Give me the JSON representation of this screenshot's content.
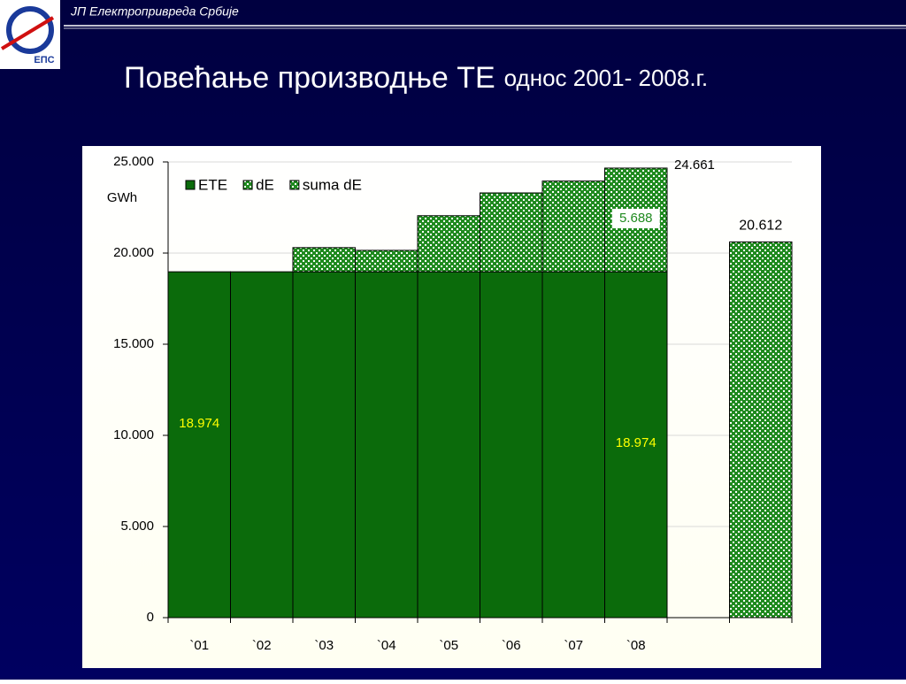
{
  "header": {
    "text": "ЈП Електропривреда Србије",
    "logo_text": "ЕПС"
  },
  "chart_data": {
    "type": "stacked-bar",
    "title": "Повећање производње ТЕ",
    "subtitle": "однос 2001-  2008.г.",
    "y_label": "GWh",
    "categories": [
      "`01",
      "`02",
      "`03",
      "`04",
      "`05",
      "`06",
      "`07",
      "`08",
      null,
      null
    ],
    "series": [
      {
        "name": "ETE",
        "color": "#0b6b0b",
        "pattern": false,
        "values": [
          18974,
          18974,
          18974,
          18974,
          18974,
          18974,
          18974,
          18974,
          null,
          null
        ],
        "value_labels": [
          "18.974",
          null,
          null,
          null,
          null,
          null,
          null,
          "18.974",
          null,
          null
        ]
      },
      {
        "name": "dE",
        "color": "#1f8a1f",
        "pattern": true,
        "values": [
          null,
          null,
          1326,
          1176,
          3076,
          4326,
          4976,
          5688,
          null,
          null
        ],
        "value_labels": [
          null,
          null,
          null,
          null,
          null,
          null,
          null,
          "5.688",
          null,
          null
        ]
      },
      {
        "name": "suma dE",
        "color": "#1f8a1f",
        "pattern": true,
        "values": [
          null,
          null,
          null,
          null,
          null,
          null,
          null,
          null,
          null,
          20612
        ],
        "value_labels": [
          null,
          null,
          null,
          null,
          null,
          null,
          null,
          null,
          null,
          "20.612"
        ]
      }
    ],
    "annotations": [
      "24.661"
    ],
    "ylim": [
      0,
      25000
    ],
    "yticks": [
      0,
      {
        "value": 5000,
        "label": "5.000"
      },
      {
        "value": 10000,
        "label": "10.000"
      },
      {
        "value": 15000,
        "label": "15.000"
      },
      {
        "value": 20000,
        "label": "20.000"
      },
      {
        "value": 25000,
        "label": "25.000"
      }
    ],
    "grid": true
  }
}
